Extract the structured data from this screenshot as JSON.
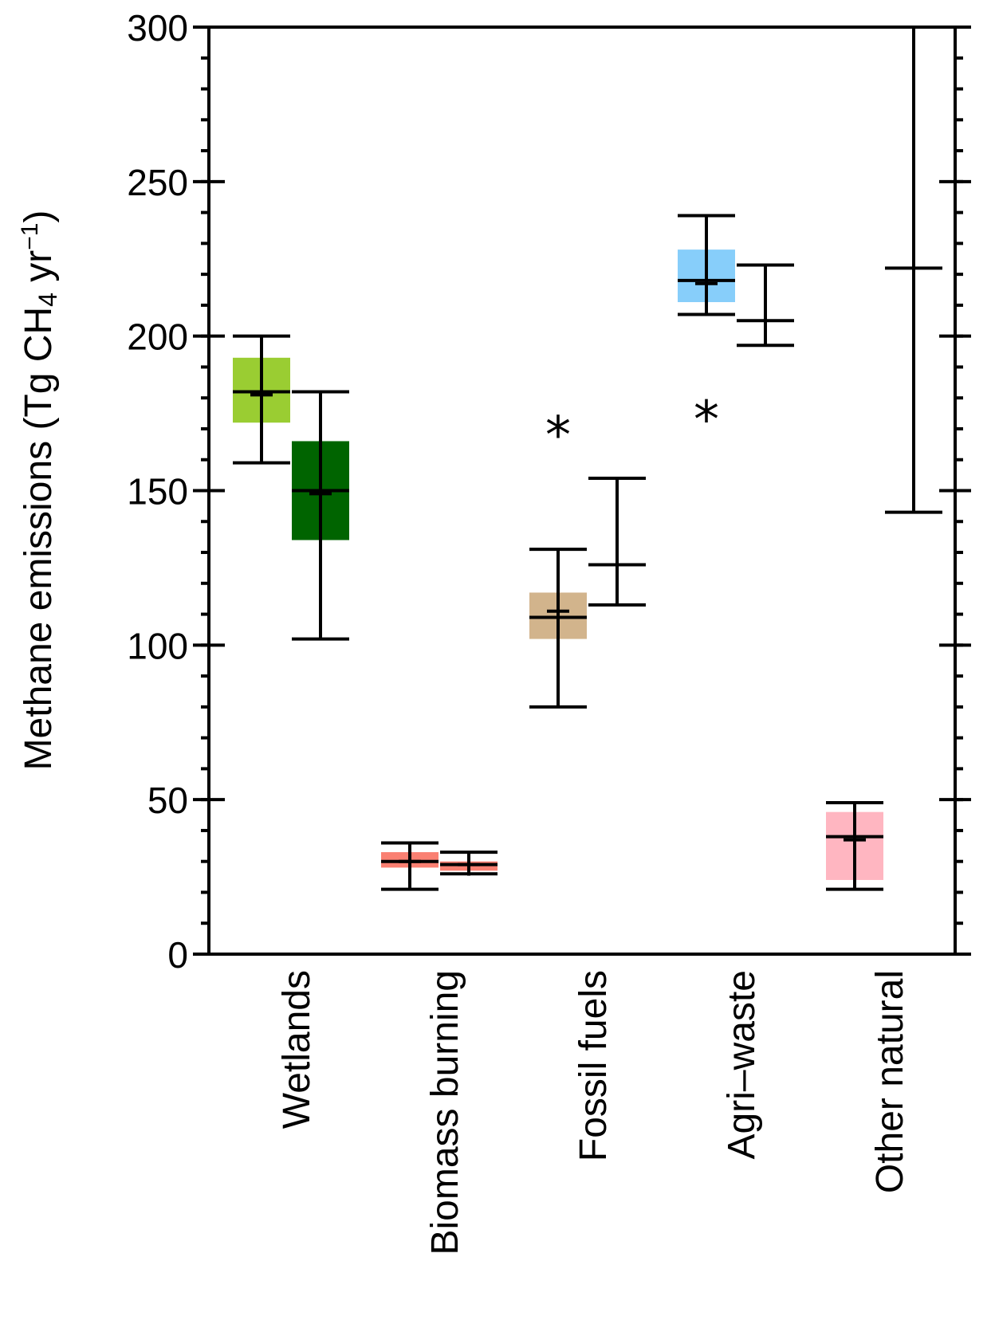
{
  "chart_data": {
    "type": "boxplot",
    "ylabel": {
      "prefix": "Methane emissions (Tg CH",
      "sub": "4",
      "middle": " yr",
      "sup": "−1",
      "suffix": ")"
    },
    "ylim": [
      0,
      300
    ],
    "yticks": [
      0,
      50,
      100,
      150,
      200,
      250,
      300
    ],
    "ytick_labels": [
      "0",
      "50",
      "100",
      "150",
      "200",
      "250",
      "300"
    ],
    "yminor_step": 10,
    "grid": false,
    "categories": [
      "Wetlands",
      "Biomass burning",
      "Fossil fuels",
      "Agri–waste",
      "Other natural"
    ],
    "series": [
      {
        "category": 0,
        "slot": "left",
        "color": "#9acd32",
        "box": [
          172,
          193
        ],
        "median": 182,
        "mean": 181,
        "whisker": [
          159,
          200
        ]
      },
      {
        "category": 0,
        "slot": "right",
        "color": "#006400",
        "box": [
          134,
          166
        ],
        "median": 150,
        "mean": 149,
        "whisker": [
          102,
          182
        ]
      },
      {
        "category": 1,
        "slot": "left",
        "color": "#fa8072",
        "box": [
          28,
          33
        ],
        "median": 30,
        "mean": 30,
        "whisker": [
          21,
          36
        ]
      },
      {
        "category": 1,
        "slot": "right",
        "color": "#fa8072",
        "box": [
          27,
          30
        ],
        "median": 29,
        "mean": 29,
        "whisker": [
          26,
          33
        ]
      },
      {
        "category": 2,
        "slot": "left",
        "color": "#d2b48c",
        "box": [
          102,
          117
        ],
        "median": 109,
        "mean": 111,
        "whisker": [
          80,
          131
        ],
        "outlier": 170
      },
      {
        "category": 2,
        "slot": "right",
        "color": null,
        "median": 126,
        "whisker": [
          113,
          154
        ]
      },
      {
        "category": 3,
        "slot": "left",
        "color": "#87cefa",
        "box": [
          211,
          228
        ],
        "median": 218,
        "mean": 217,
        "whisker": [
          207,
          239
        ],
        "outlier": 175
      },
      {
        "category": 3,
        "slot": "right",
        "color": null,
        "median": 205,
        "whisker": [
          197,
          223
        ]
      },
      {
        "category": 4,
        "slot": "left",
        "color": "#ffb6c1",
        "box": [
          24,
          46
        ],
        "median": 38,
        "mean": 37,
        "whisker": [
          21,
          49
        ]
      },
      {
        "category": 4,
        "slot": "right",
        "color": null,
        "median": 222,
        "whisker": [
          143,
          300
        ]
      }
    ]
  }
}
